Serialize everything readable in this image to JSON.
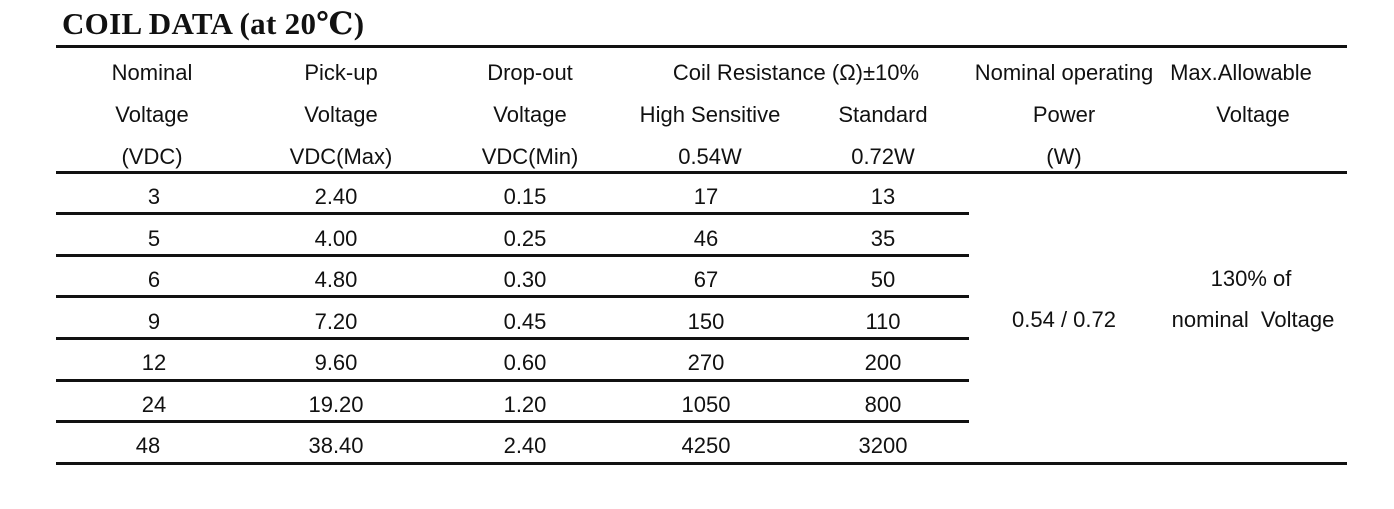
{
  "title": "COIL DATA (at 20℃)",
  "header": {
    "nominal": [
      "Nominal",
      "Voltage",
      "(VDC)"
    ],
    "pickup": [
      "Pick-up",
      "Voltage",
      "VDC(Max)"
    ],
    "dropout": [
      "Drop-out",
      "Voltage",
      "VDC(Min)"
    ],
    "coil_resistance": "Coil Resistance (Ω)±10%",
    "high_sensitive": [
      "High Sensitive",
      "0.54W"
    ],
    "standard": [
      "Standard",
      "0.72W"
    ],
    "power": [
      "Nominal operating",
      "Power",
      "(W)"
    ],
    "max_allowable": [
      "Max.Allowable",
      "Voltage"
    ]
  },
  "rows": [
    {
      "nominal": "3",
      "pickup": "2.40",
      "dropout": "0.15",
      "high": "17",
      "standard": "13"
    },
    {
      "nominal": "5",
      "pickup": "4.00",
      "dropout": "0.25",
      "high": "46",
      "standard": "35"
    },
    {
      "nominal": "6",
      "pickup": "4.80",
      "dropout": "0.30",
      "high": "67",
      "standard": "50"
    },
    {
      "nominal": "9",
      "pickup": "7.20",
      "dropout": "0.45",
      "high": "150",
      "standard": "110"
    },
    {
      "nominal": "12",
      "pickup": "9.60",
      "dropout": "0.60",
      "high": "270",
      "standard": "200"
    },
    {
      "nominal": "24",
      "pickup": "19.20",
      "dropout": "1.20",
      "high": "1050",
      "standard": "800"
    },
    {
      "nominal": "48",
      "pickup": "38.40",
      "dropout": "2.40",
      "high": "4250",
      "standard": "3200"
    }
  ],
  "power_value": "0.54 / 0.72",
  "max_voltage": [
    "130% of",
    "nominal  Voltage"
  ]
}
